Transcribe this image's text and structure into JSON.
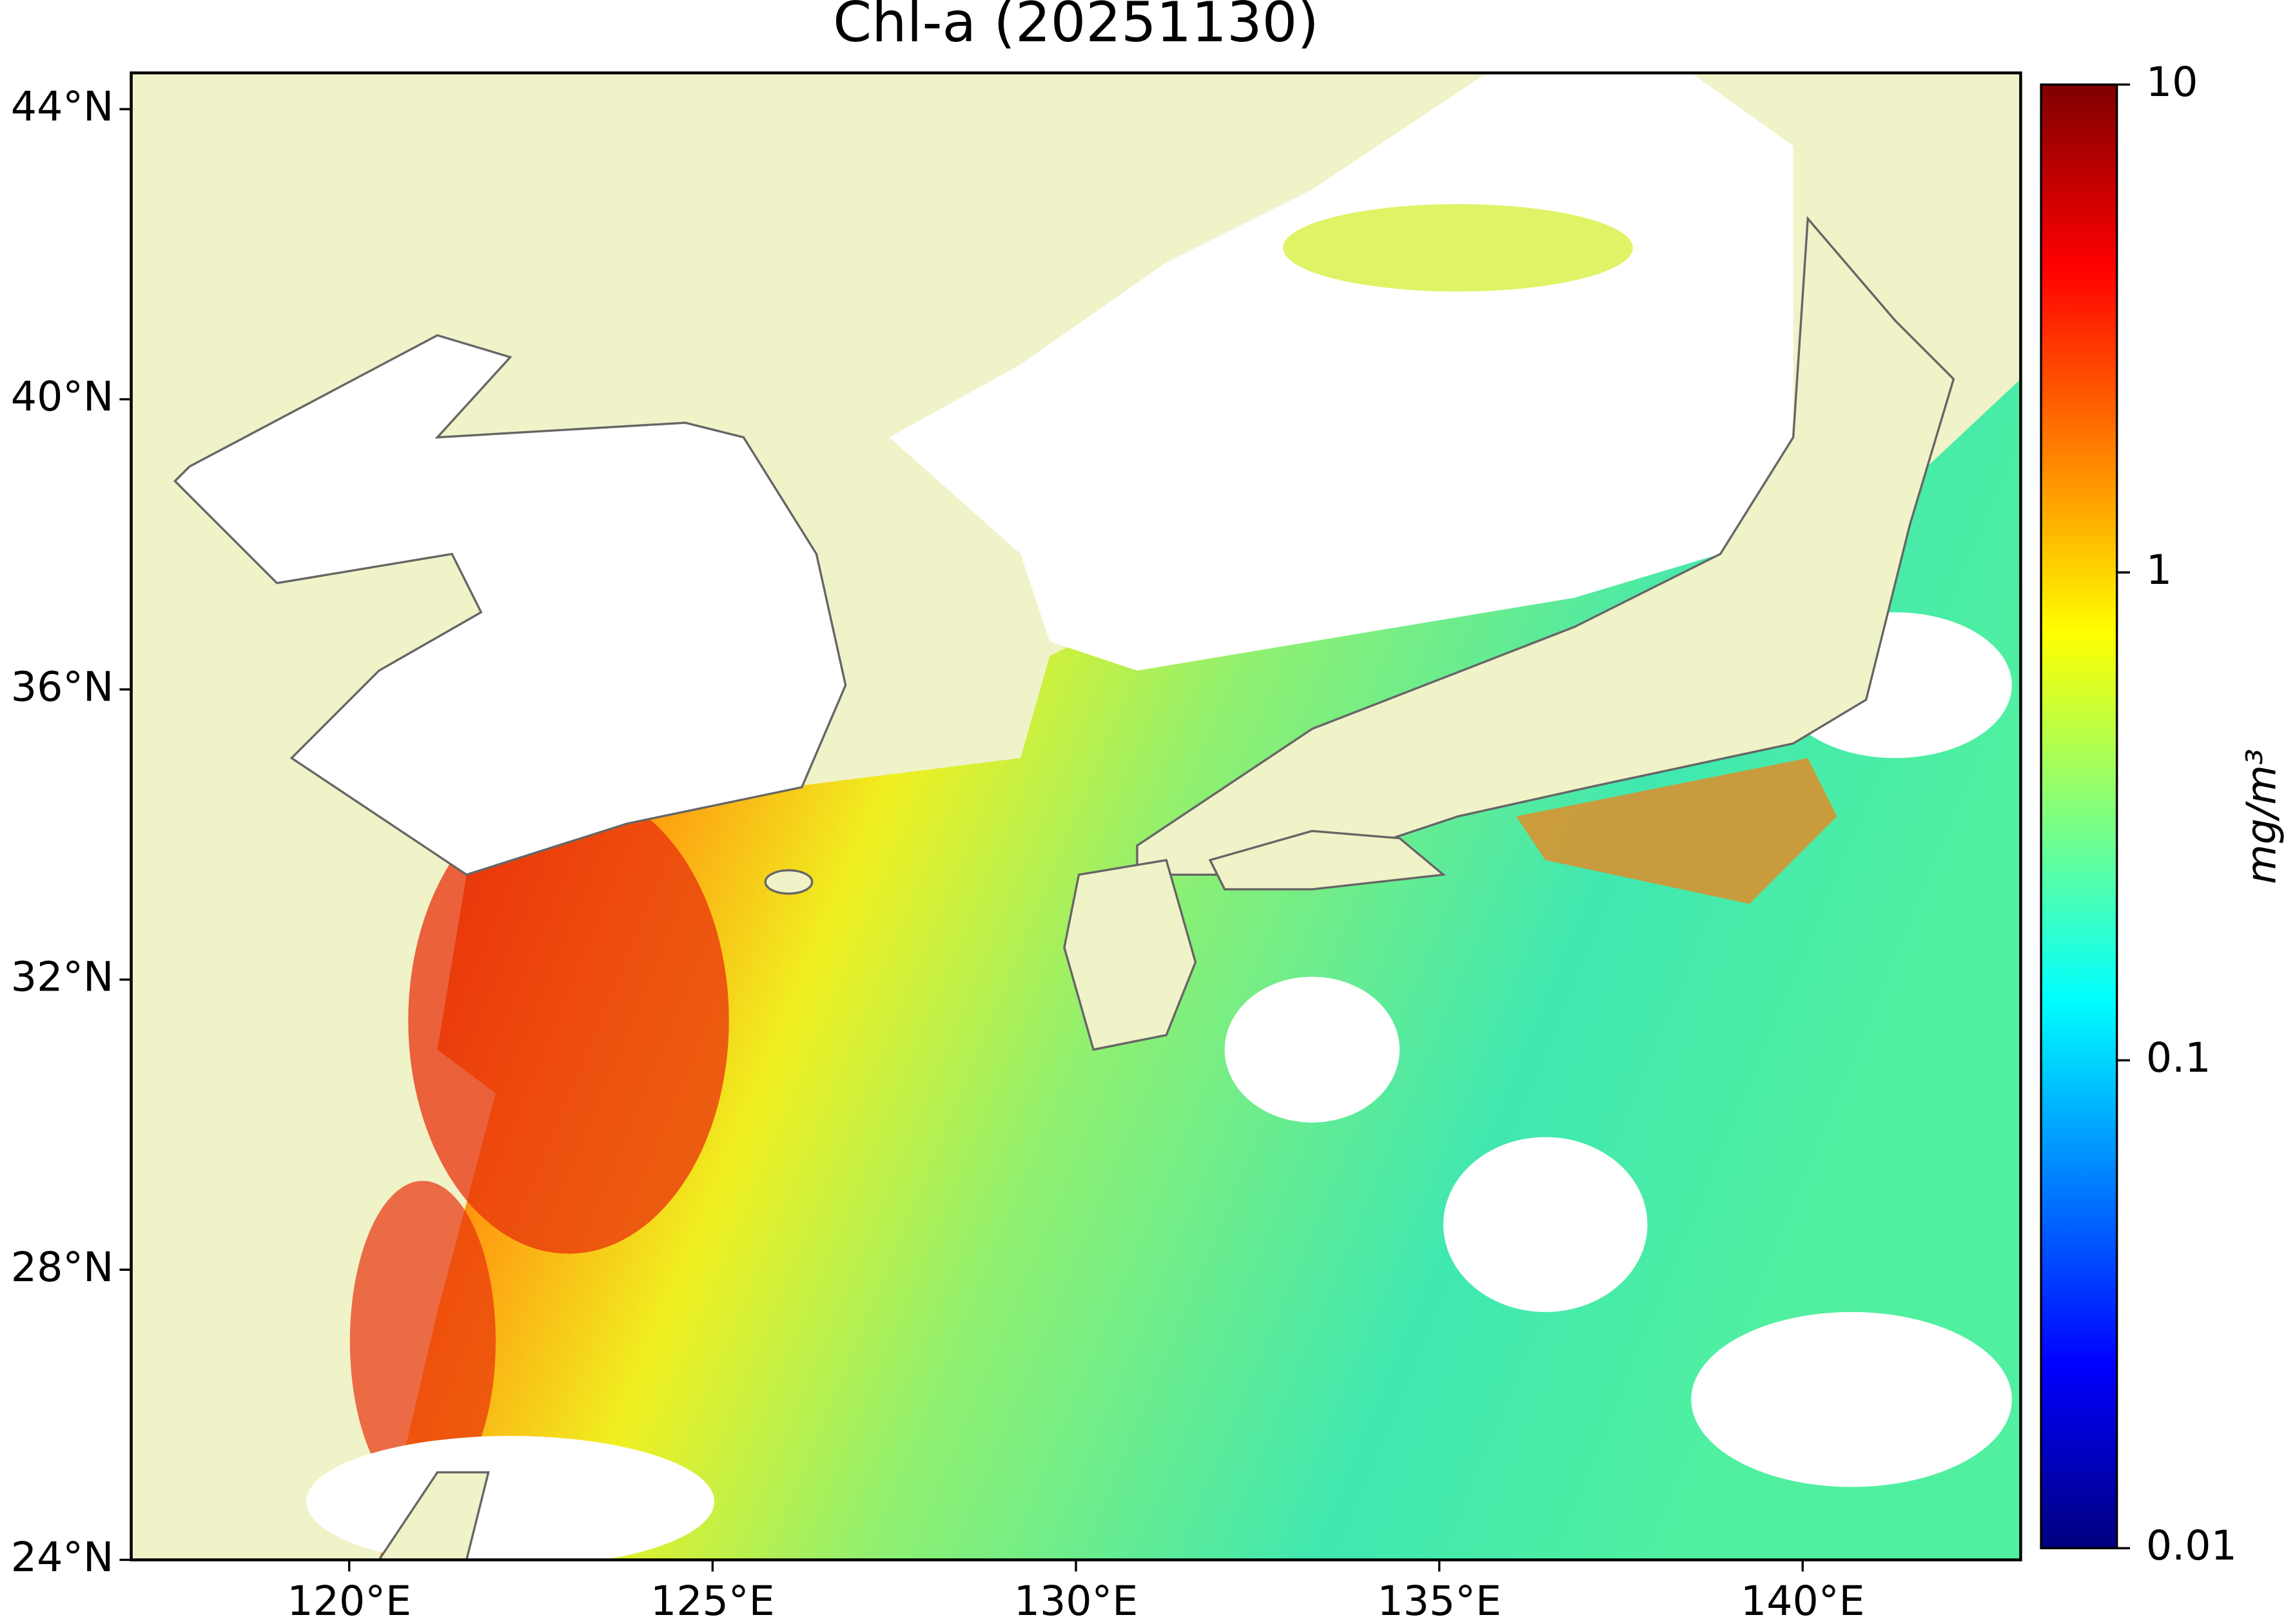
{
  "chart_data": {
    "type": "map",
    "title": "Chl-a (20251130)",
    "xlim": [
      117,
      143
    ],
    "ylim": [
      24,
      44.5
    ],
    "xticks": [
      {
        "value": 120,
        "label": "120°E"
      },
      {
        "value": 125,
        "label": "125°E"
      },
      {
        "value": 130,
        "label": "130°E"
      },
      {
        "value": 135,
        "label": "135°E"
      },
      {
        "value": 140,
        "label": "140°E"
      }
    ],
    "yticks": [
      {
        "value": 24,
        "label": "24°N"
      },
      {
        "value": 28,
        "label": "28°N"
      },
      {
        "value": 32,
        "label": "32°N"
      },
      {
        "value": 36,
        "label": "36°N"
      },
      {
        "value": 40,
        "label": "40°N"
      },
      {
        "value": 44,
        "label": "44°N"
      }
    ],
    "colorbar": {
      "label": "mg/m³",
      "log": true,
      "lim": [
        0.01,
        10
      ],
      "ticks": [
        0.01,
        0.1,
        1,
        10
      ],
      "colors": [
        "#00007f",
        "#0000ff",
        "#007fff",
        "#00ffff",
        "#7fff7f",
        "#ffff00",
        "#ff7f00",
        "#ff0000",
        "#7f0000"
      ]
    },
    "land_color": "#f0f3c8"
  }
}
